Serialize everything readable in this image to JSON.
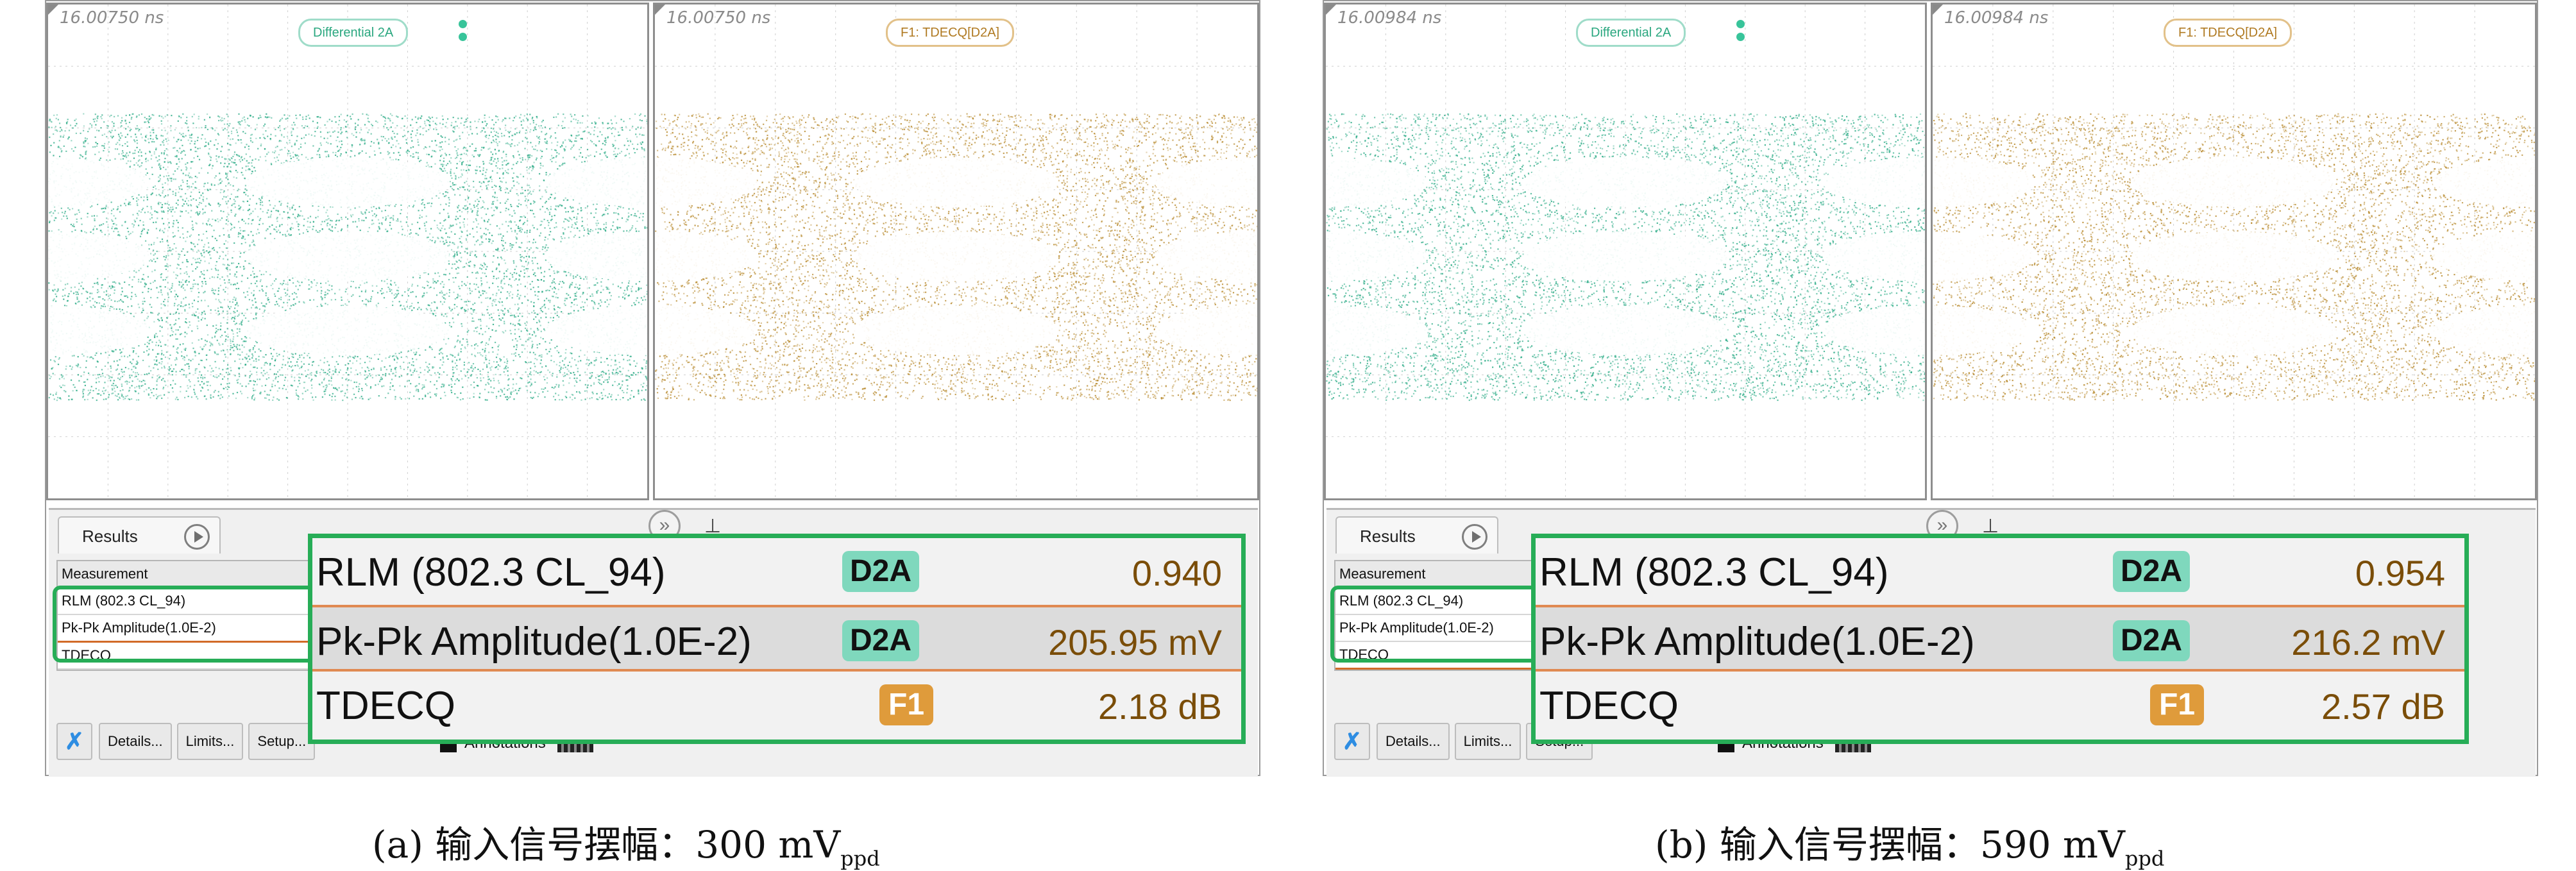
{
  "colors": {
    "green_eye": "#2bab86",
    "orange_eye": "#b88a2e",
    "highlight": "#27ad57"
  },
  "panels": [
    {
      "timestamp": "16.00750 ns",
      "left_tag": "Differential 2A",
      "right_tag": "F1: TDECQ[D2A]",
      "results_tab": "Results",
      "table_header": "Measurement",
      "table_rows": [
        "RLM (802.3 CL_94)",
        "Pk-Pk Amplitude(1.0E-2)",
        "TDECQ"
      ],
      "buttons": [
        "Details...",
        "Limits...",
        "Setup..."
      ],
      "annotations_label": "Annotations",
      "measurements": [
        {
          "name": "RLM (802.3 CL_94)",
          "source": "D2A",
          "value": "0.940"
        },
        {
          "name": "Pk-Pk Amplitude(1.0E-2)",
          "source": "D2A",
          "value": "205.95 mV"
        },
        {
          "name": "TDECQ",
          "source": "F1",
          "value": "2.18 dB"
        }
      ],
      "caption_main": "(a) 输入信号摆幅：300 mV",
      "caption_sub": "ppd"
    },
    {
      "timestamp": "16.00984 ns",
      "left_tag": "Differential 2A",
      "right_tag": "F1: TDECQ[D2A]",
      "results_tab": "Results",
      "table_header": "Measurement",
      "table_rows": [
        "RLM (802.3 CL_94)",
        "Pk-Pk Amplitude(1.0E-2)",
        "TDECQ"
      ],
      "buttons": [
        "Details...",
        "Limits...",
        "Setup..."
      ],
      "annotations_label": "Annotations",
      "measurements": [
        {
          "name": "RLM (802.3 CL_94)",
          "source": "D2A",
          "value": "0.954"
        },
        {
          "name": "Pk-Pk Amplitude(1.0E-2)",
          "source": "D2A",
          "value": "216.2 mV"
        },
        {
          "name": "TDECQ",
          "source": "F1",
          "value": "2.57 dB"
        }
      ],
      "caption_main": "(b) 输入信号摆幅：590 mV",
      "caption_sub": "ppd"
    }
  ]
}
